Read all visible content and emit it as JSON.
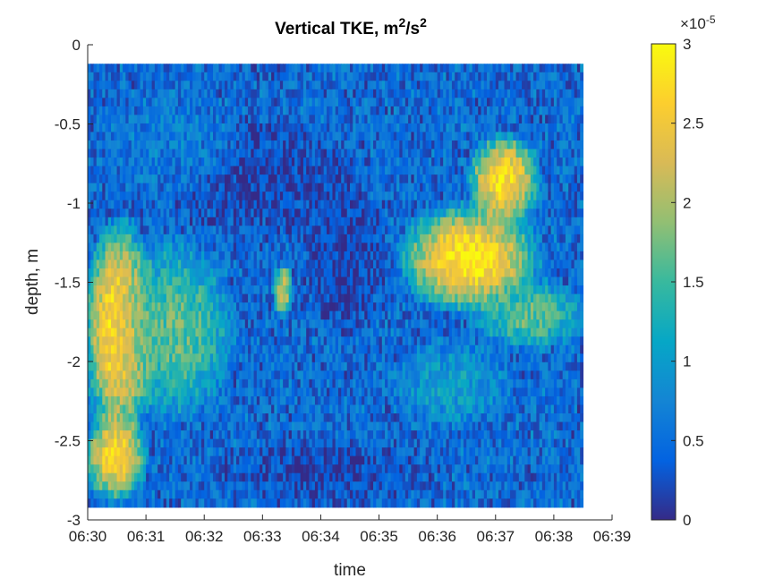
{
  "chart_data": {
    "type": "heatmap",
    "title": "Vertical TKE, m",
    "title_sup1": "2",
    "title_mid": "/s",
    "title_sup2": "2",
    "xlabel": "time",
    "ylabel": "depth, m",
    "x_ticks": [
      "06:30",
      "06:31",
      "06:32",
      "06:33",
      "06:34",
      "06:35",
      "06:36",
      "06:37",
      "06:38",
      "06:39"
    ],
    "y_ticks": [
      "0",
      "-0.5",
      "-1",
      "-1.5",
      "-2",
      "-2.5",
      "-3"
    ],
    "xlim": [
      "06:30",
      "06:39"
    ],
    "ylim": [
      -3,
      0
    ],
    "data_extent": {
      "x": [
        "06:30",
        "06:38.5"
      ],
      "y": [
        -2.92,
        -0.12
      ]
    },
    "colorbar": {
      "colormap": "parula",
      "ticks": [
        "0",
        "0.5",
        "1",
        "1.5",
        "2",
        "2.5",
        "3"
      ],
      "limits": [
        0,
        3
      ],
      "exponent_label": "×10",
      "exponent_sup": "-5"
    },
    "regions": [
      {
        "time": [
          0,
          1.1
        ],
        "depth": [
          -2.4,
          -1.2
        ],
        "level": 0.95
      },
      {
        "time": [
          0,
          0.95
        ],
        "depth": [
          -2.85,
          -2.35
        ],
        "level": 0.9
      },
      {
        "time": [
          0.6,
          2.4
        ],
        "depth": [
          -2.3,
          -1.3
        ],
        "level": 0.55
      },
      {
        "time": [
          5.5,
          7.6
        ],
        "depth": [
          -1.65,
          -1.05
        ],
        "level": 0.95
      },
      {
        "time": [
          6.6,
          7.7
        ],
        "depth": [
          -1.1,
          -0.6
        ],
        "level": 0.92
      },
      {
        "time": [
          6.7,
          8.4
        ],
        "depth": [
          -1.9,
          -1.5
        ],
        "level": 0.55
      },
      {
        "time": [
          5.3,
          7.2
        ],
        "depth": [
          -2.4,
          -1.9
        ],
        "level": 0.35
      },
      {
        "time": [
          3.7,
          5.1
        ],
        "depth": [
          -1.8,
          -0.9
        ],
        "level": 0.04
      },
      {
        "time": [
          1.5,
          4.5
        ],
        "depth": [
          -1.2,
          -0.5
        ],
        "level": 0.06
      },
      {
        "time": [
          2.3,
          5.8
        ],
        "depth": [
          -2.9,
          -2.5
        ],
        "level": 0.06
      },
      {
        "time": [
          3.2,
          3.5
        ],
        "depth": [
          -1.7,
          -1.4
        ],
        "level": 0.75
      },
      {
        "time": [
          0.3,
          2.5
        ],
        "depth": [
          -0.9,
          -0.3
        ],
        "level": 0.22
      }
    ]
  },
  "colors": {
    "parula": [
      "#352a87",
      "#0363e1",
      "#1485d4",
      "#06a7c6",
      "#38b99e",
      "#92bf73",
      "#d9ba56",
      "#fcce2e",
      "#f9fb0e"
    ]
  }
}
